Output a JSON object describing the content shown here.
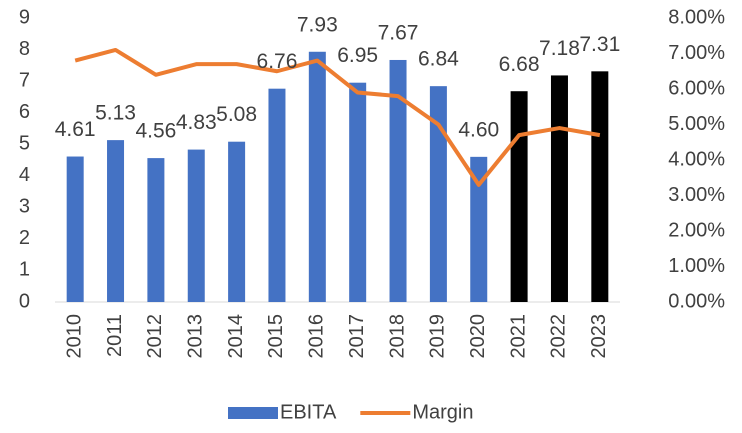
{
  "chart_data": {
    "type": "bar_line",
    "categories": [
      "2010",
      "2011",
      "2012",
      "2013",
      "2014",
      "2015",
      "2016",
      "2017",
      "2018",
      "2019",
      "2020",
      "2021",
      "2022",
      "2023"
    ],
    "series": [
      {
        "name": "EBITA",
        "type": "bar",
        "axis": "y",
        "color": "#4472c4",
        "colors": [
          "#4472c4",
          "#4472c4",
          "#4472c4",
          "#4472c4",
          "#4472c4",
          "#4472c4",
          "#4472c4",
          "#4472c4",
          "#4472c4",
          "#4472c4",
          "#4472c4",
          "#000000",
          "#000000",
          "#000000"
        ],
        "values": [
          4.61,
          5.13,
          4.56,
          4.83,
          5.08,
          6.76,
          7.93,
          6.95,
          7.67,
          6.84,
          4.6,
          6.68,
          7.18,
          7.31
        ],
        "value_labels": [
          "4.61",
          "5.13",
          "4.56",
          "4.83",
          "5.08",
          "6.76",
          "7.93",
          "6.95",
          "7.67",
          "6.84",
          "4.60",
          "6.68",
          "7.18",
          "7.31"
        ]
      },
      {
        "name": "Margin",
        "type": "line",
        "axis": "y2",
        "color": "#ed7d31",
        "values": [
          6.8,
          7.1,
          6.4,
          6.7,
          6.7,
          6.5,
          6.8,
          5.9,
          5.8,
          5.0,
          3.3,
          4.7,
          4.9,
          4.7
        ]
      }
    ],
    "ylim": [
      0,
      9
    ],
    "yticks": [
      0,
      1,
      2,
      3,
      4,
      5,
      6,
      7,
      8,
      9
    ],
    "y2lim": [
      0,
      8
    ],
    "y2ticks": [
      {
        "value": 0,
        "label": "0.00%"
      },
      {
        "value": 1,
        "label": "1.00%"
      },
      {
        "value": 2,
        "label": "2.00%"
      },
      {
        "value": 3,
        "label": "3.00%"
      },
      {
        "value": 4,
        "label": "4.00%"
      },
      {
        "value": 5,
        "label": "5.00%"
      },
      {
        "value": 6,
        "label": "6.00%"
      },
      {
        "value": 7,
        "label": "7.00%"
      },
      {
        "value": 8,
        "label": "8.00%"
      }
    ],
    "legend": "bottom"
  }
}
